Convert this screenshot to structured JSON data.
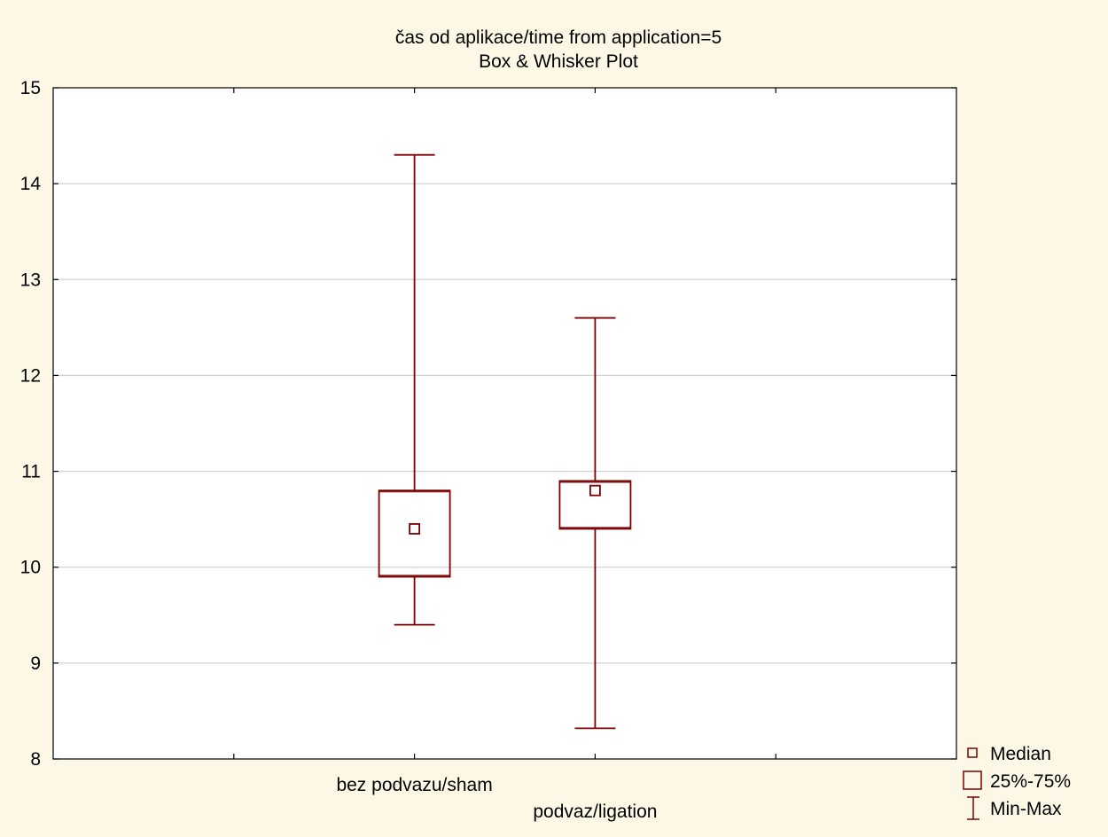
{
  "chart_data": {
    "type": "box",
    "title": "čas od aplikace/time from application=5",
    "subtitle": "Box & Whisker Plot",
    "xlabel": "",
    "ylabel": "",
    "ylim": [
      8,
      15
    ],
    "yticks": [
      8,
      9,
      10,
      11,
      12,
      13,
      14,
      15
    ],
    "grid": true,
    "categories": [
      "bez podvazu/sham",
      "podvaz/ligation"
    ],
    "boxes": [
      {
        "category": "bez podvazu/sham",
        "min": 9.4,
        "q1": 9.9,
        "median": 10.4,
        "q3": 10.8,
        "max": 14.3
      },
      {
        "category": "podvaz/ligation",
        "min": 8.32,
        "q1": 10.4,
        "median": 10.8,
        "q3": 10.9,
        "max": 12.6
      }
    ],
    "legend": {
      "position": "bottom-right",
      "entries": [
        "Median",
        "25%-75%",
        "Min-Max"
      ]
    },
    "colors": {
      "series": "#7b0000",
      "grid": "#d3d3d3",
      "background": "#fdf8e6",
      "plot": "#ffffff"
    }
  }
}
